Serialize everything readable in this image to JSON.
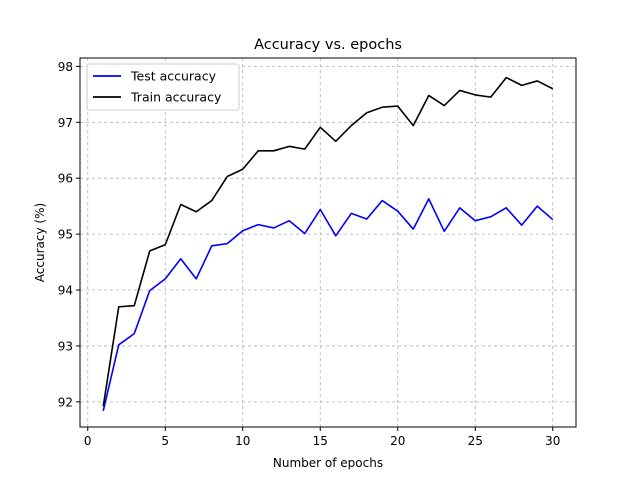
{
  "chart_data": {
    "type": "line",
    "title": "Accuracy vs. epochs",
    "xlabel": "Number of epochs",
    "ylabel": "Accuracy (%)",
    "xlim": [
      -0.5,
      31.5
    ],
    "ylim": [
      91.55,
      98.15
    ],
    "xticks": [
      0,
      5,
      10,
      15,
      20,
      25,
      30
    ],
    "yticks": [
      92,
      93,
      94,
      95,
      96,
      97,
      98
    ],
    "grid": true,
    "legend_position": "top-left",
    "x": [
      1,
      2,
      3,
      4,
      5,
      6,
      7,
      8,
      9,
      10,
      11,
      12,
      13,
      14,
      15,
      16,
      17,
      18,
      19,
      20,
      21,
      22,
      23,
      24,
      25,
      26,
      27,
      28,
      29,
      30
    ],
    "series": [
      {
        "name": "Test accuracy",
        "color": "#0000ff",
        "values": [
          91.84,
          93.02,
          93.22,
          93.99,
          94.2,
          94.56,
          94.2,
          94.79,
          94.83,
          95.06,
          95.17,
          95.11,
          95.24,
          95.01,
          95.44,
          94.97,
          95.37,
          95.27,
          95.6,
          95.41,
          95.09,
          95.63,
          95.05,
          95.47,
          95.24,
          95.31,
          95.47,
          95.16,
          95.5,
          95.26
        ]
      },
      {
        "name": "Train accuracy",
        "color": "#000000",
        "values": [
          91.92,
          93.7,
          93.72,
          94.7,
          94.81,
          95.53,
          95.4,
          95.6,
          96.03,
          96.16,
          96.49,
          96.49,
          96.57,
          96.52,
          96.91,
          96.66,
          96.94,
          97.17,
          97.27,
          97.29,
          96.94,
          97.48,
          97.3,
          97.57,
          97.49,
          97.45,
          97.8,
          97.66,
          97.74,
          97.6
        ]
      }
    ]
  }
}
